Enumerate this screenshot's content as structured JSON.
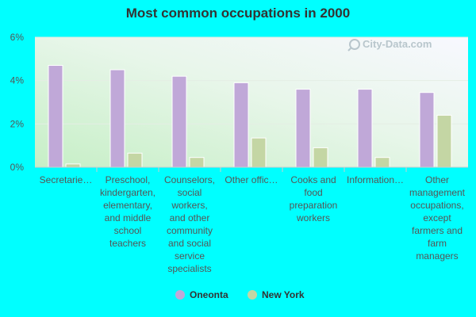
{
  "chart_data": {
    "type": "bar",
    "title": "Most common occupations in 2000",
    "categories": [
      "Secretarie…",
      "Preschool, kindergarten, elementary, and middle school teachers",
      "Counselors, social workers, and other community and social service specialists",
      "Other offic…",
      "Cooks and food preparation workers",
      "Information…",
      "Other management occupations, except farmers and farm managers"
    ],
    "category_lines": [
      [
        "Secretarie…"
      ],
      [
        "Preschool,",
        "kindergarten,",
        "elementary,",
        "and middle",
        "school",
        "teachers"
      ],
      [
        "Counselors,",
        "social",
        "workers,",
        "and other",
        "community",
        "and social",
        "service",
        "specialists"
      ],
      [
        "Other offic…"
      ],
      [
        "Cooks and",
        "food",
        "preparation",
        "workers"
      ],
      [
        "Information…"
      ],
      [
        "Other",
        "management",
        "occupations,",
        "except",
        "farmers and",
        "farm",
        "managers"
      ]
    ],
    "series": [
      {
        "name": "Oneonta",
        "color": "#c0a8d8",
        "values": [
          4.7,
          4.5,
          4.2,
          3.9,
          3.6,
          3.6,
          3.45
        ]
      },
      {
        "name": "New York",
        "color": "#c4d6a4",
        "values": [
          0.15,
          0.65,
          0.45,
          1.35,
          0.9,
          0.45,
          2.4
        ]
      }
    ],
    "y_unit": "%",
    "ylim": [
      0,
      6
    ],
    "yticks": [
      0,
      2,
      4,
      6
    ],
    "ytick_labels": [
      "0%",
      "2%",
      "4%",
      "6%"
    ],
    "grid": true,
    "legend_position": "bottom-center"
  },
  "watermark": {
    "text": "City-Data.com",
    "icon": "search-magnifier-icon"
  }
}
